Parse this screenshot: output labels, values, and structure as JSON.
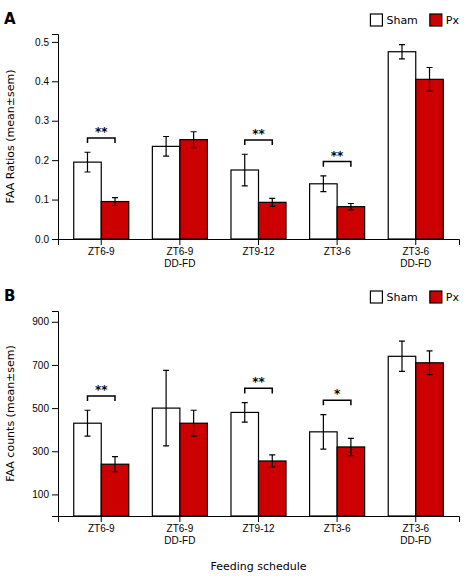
{
  "chart_data": [
    {
      "type": "bar",
      "title": "A",
      "ylabel": "FAA Ratios (mean±sem)",
      "categories": [
        "ZT6-9",
        "ZT6-9\nDD-FD",
        "ZT9-12",
        "ZT3-6",
        "ZT3-6\nDD-FD"
      ],
      "series": [
        {
          "name": "Sham",
          "color": "#ffffff",
          "values": [
            0.195,
            0.235,
            0.175,
            0.14,
            0.475
          ],
          "errors": [
            0.025,
            0.025,
            0.04,
            0.02,
            0.018
          ]
        },
        {
          "name": "Px",
          "color": "#cc0000",
          "values": [
            0.095,
            0.252,
            0.093,
            0.082,
            0.405
          ],
          "errors": [
            0.01,
            0.02,
            0.01,
            0.008,
            0.03
          ]
        }
      ],
      "ylim": [
        0,
        0.52
      ],
      "yticks": [
        {
          "value": 0,
          "label": "0.0"
        },
        0.1,
        0.2,
        0.3,
        0.4,
        0.5
      ],
      "legend": "upper right",
      "annotations": [
        {
          "category": "ZT6-9",
          "label": "**"
        },
        {
          "category": "ZT9-12",
          "label": "**"
        },
        {
          "category": "ZT3-6",
          "label": "**"
        }
      ]
    },
    {
      "type": "bar",
      "title": "B",
      "ylabel": "FAA counts (mean±sem)",
      "xlabel": "Feeding schedule",
      "categories": [
        "ZT6-9",
        "ZT6-9\nDD-FD",
        "ZT9-12",
        "ZT3-6",
        "ZT3-6\nDD-FD"
      ],
      "series": [
        {
          "name": "Sham",
          "color": "#ffffff",
          "values": [
            430,
            500,
            480,
            390,
            740
          ],
          "errors": [
            60,
            175,
            45,
            80,
            70
          ]
        },
        {
          "name": "Px",
          "color": "#cc0000",
          "values": [
            240,
            430,
            255,
            320,
            710
          ],
          "errors": [
            35,
            60,
            28,
            40,
            55
          ]
        }
      ],
      "ylim": [
        0,
        950
      ],
      "yticks": [
        100,
        300,
        500,
        700,
        900
      ],
      "legend": "upper right",
      "annotations": [
        {
          "category": "ZT6-9",
          "label": "**"
        },
        {
          "category": "ZT9-12",
          "label": "**"
        },
        {
          "category": "ZT3-6",
          "label": "*"
        }
      ]
    }
  ]
}
